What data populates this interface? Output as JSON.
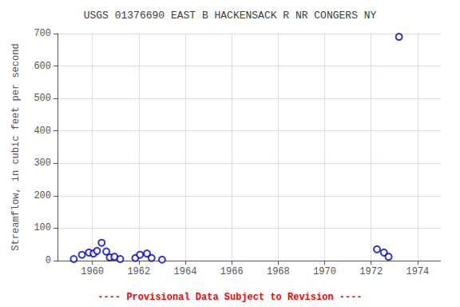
{
  "chart_data": {
    "type": "scatter",
    "title": "USGS 01376690 EAST B HACKENSACK R NR CONGERS NY",
    "ylabel": "Streamflow, in cubic feet per second",
    "x": [
      1959.2,
      1959.55,
      1959.85,
      1960.05,
      1960.2,
      1960.4,
      1960.6,
      1960.75,
      1960.95,
      1961.2,
      1961.85,
      1962.05,
      1962.35,
      1962.55,
      1963.0,
      1972.25,
      1972.55,
      1972.75,
      1973.2
    ],
    "values": [
      5,
      18,
      25,
      22,
      30,
      55,
      28,
      10,
      12,
      5,
      8,
      18,
      22,
      8,
      3,
      35,
      25,
      12,
      690
    ],
    "color": "#0000cc",
    "marker": "open_circle",
    "xlim": [
      1958.5,
      1975.0
    ],
    "ylim": [
      0,
      700
    ],
    "xticks": [
      1960,
      1962,
      1964,
      1966,
      1968,
      1970,
      1972,
      1974
    ],
    "yticks": [
      0,
      100,
      200,
      300,
      400,
      500,
      600,
      700
    ],
    "grid": true,
    "annotations": [
      {
        "text": "---- Provisional Data Subject to Revision ----",
        "color": "#ff0000"
      }
    ]
  }
}
